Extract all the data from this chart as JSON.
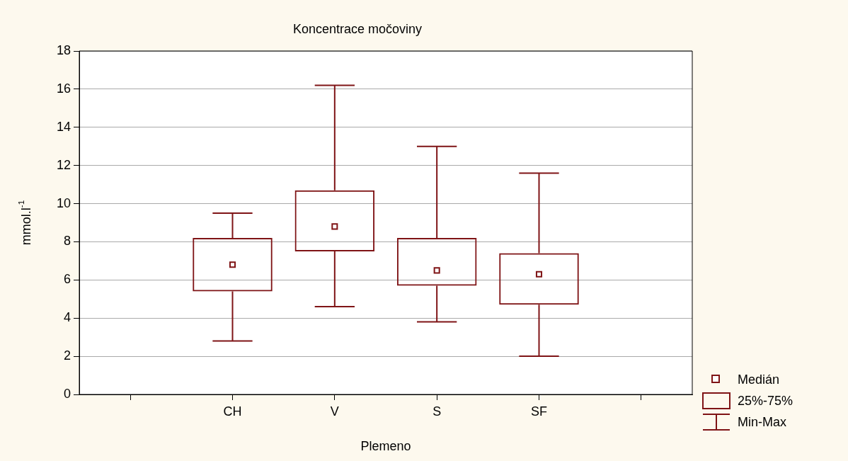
{
  "chart_data": {
    "type": "box",
    "title": "Koncentrace močoviny",
    "xlabel": "Plemeno",
    "ylabel": "mmol.l$^{-1}$",
    "categories": [
      null,
      "CH",
      "V",
      "S",
      "SF",
      null
    ],
    "boxes": [
      null,
      {
        "low": 2.8,
        "q1": 5.4,
        "median": 6.8,
        "q3": 8.2,
        "high": 9.5
      },
      {
        "low": 4.6,
        "q1": 7.5,
        "median": 8.8,
        "q3": 10.7,
        "high": 16.2
      },
      {
        "low": 3.8,
        "q1": 5.7,
        "median": 6.5,
        "q3": 8.2,
        "high": 13.0
      },
      {
        "low": 2.0,
        "q1": 4.7,
        "median": 6.3,
        "q3": 7.4,
        "high": 11.6
      },
      null
    ],
    "color": "#7f1416",
    "marker": "square",
    "ylim": [
      0,
      18
    ],
    "yticks": [
      0,
      2,
      4,
      6,
      8,
      10,
      12,
      14,
      16,
      18
    ],
    "grid": "y",
    "annotations": [
      "Medián",
      "25%-75%",
      "Min-Max"
    ]
  }
}
